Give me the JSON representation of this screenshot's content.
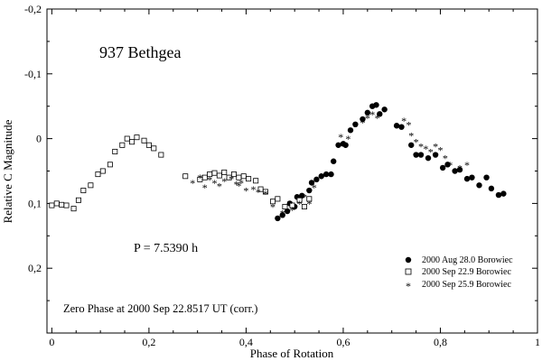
{
  "chart_data": {
    "type": "scatter",
    "xlabel": "Phase of Rotation",
    "ylabel": "Relative C Magnitude",
    "xlim": [
      -0.01,
      1.0
    ],
    "ylim": [
      0.3,
      -0.2
    ],
    "y_inverted": true,
    "grid": false,
    "x_ticks": [
      0,
      0.2,
      0.4,
      0.6,
      0.8,
      1
    ],
    "x_tick_labels": [
      "0",
      "0,2",
      "0,4",
      "0,6",
      "0,8",
      "1"
    ],
    "y_ticks": [
      -0.2,
      -0.1,
      0,
      0.1,
      0.2
    ],
    "y_tick_labels": [
      "-0,2",
      "-0,1",
      "0",
      "0,1",
      "0,2"
    ],
    "annotations": {
      "object": "937 Bethgea",
      "period": "P = 7.5390 h",
      "zero_phase": "Zero Phase at 2000 Sep 22.8517 UT (corr.)"
    },
    "legend_position": "bottom-right",
    "series": [
      {
        "name": "2000 Aug 28.0 Borowiec",
        "marker": "filled-circle",
        "points": [
          [
            0.465,
            0.123
          ],
          [
            0.475,
            0.118
          ],
          [
            0.485,
            0.112
          ],
          [
            0.49,
            0.1
          ],
          [
            0.5,
            0.105
          ],
          [
            0.505,
            0.09
          ],
          [
            0.515,
            0.088
          ],
          [
            0.53,
            0.08
          ],
          [
            0.535,
            0.068
          ],
          [
            0.545,
            0.063
          ],
          [
            0.555,
            0.058
          ],
          [
            0.565,
            0.055
          ],
          [
            0.575,
            0.055
          ],
          [
            0.58,
            0.035
          ],
          [
            0.59,
            0.01
          ],
          [
            0.6,
            0.008
          ],
          [
            0.605,
            0.01
          ],
          [
            0.615,
            -0.013
          ],
          [
            0.625,
            -0.022
          ],
          [
            0.64,
            -0.03
          ],
          [
            0.65,
            -0.04
          ],
          [
            0.66,
            -0.05
          ],
          [
            0.668,
            -0.052
          ],
          [
            0.675,
            -0.038
          ],
          [
            0.685,
            -0.045
          ],
          [
            0.71,
            -0.02
          ],
          [
            0.72,
            -0.018
          ],
          [
            0.74,
            0.01
          ],
          [
            0.75,
            0.025
          ],
          [
            0.76,
            0.025
          ],
          [
            0.775,
            0.03
          ],
          [
            0.79,
            0.025
          ],
          [
            0.805,
            0.045
          ],
          [
            0.815,
            0.04
          ],
          [
            0.83,
            0.05
          ],
          [
            0.84,
            0.048
          ],
          [
            0.855,
            0.062
          ],
          [
            0.865,
            0.06
          ],
          [
            0.88,
            0.072
          ],
          [
            0.895,
            0.06
          ],
          [
            0.905,
            0.077
          ],
          [
            0.92,
            0.087
          ],
          [
            0.93,
            0.085
          ]
        ]
      },
      {
        "name": "2000 Sep 22.9 Borowiec",
        "marker": "open-square",
        "points": [
          [
            0.0,
            0.103
          ],
          [
            0.01,
            0.1
          ],
          [
            0.02,
            0.102
          ],
          [
            0.03,
            0.103
          ],
          [
            0.045,
            0.108
          ],
          [
            0.055,
            0.095
          ],
          [
            0.065,
            0.08
          ],
          [
            0.08,
            0.072
          ],
          [
            0.095,
            0.055
          ],
          [
            0.105,
            0.05
          ],
          [
            0.12,
            0.04
          ],
          [
            0.13,
            0.02
          ],
          [
            0.145,
            0.01
          ],
          [
            0.155,
            0.0
          ],
          [
            0.165,
            0.005
          ],
          [
            0.175,
            -0.002
          ],
          [
            0.19,
            0.003
          ],
          [
            0.2,
            0.01
          ],
          [
            0.21,
            0.015
          ],
          [
            0.225,
            0.025
          ],
          [
            0.275,
            0.058
          ],
          [
            0.305,
            0.063
          ],
          [
            0.315,
            0.06
          ],
          [
            0.325,
            0.055
          ],
          [
            0.335,
            0.053
          ],
          [
            0.345,
            0.057
          ],
          [
            0.355,
            0.052
          ],
          [
            0.365,
            0.06
          ],
          [
            0.375,
            0.055
          ],
          [
            0.385,
            0.06
          ],
          [
            0.395,
            0.058
          ],
          [
            0.405,
            0.062
          ],
          [
            0.42,
            0.065
          ],
          [
            0.43,
            0.078
          ],
          [
            0.44,
            0.082
          ],
          [
            0.455,
            0.097
          ],
          [
            0.465,
            0.093
          ],
          [
            0.48,
            0.105
          ],
          [
            0.495,
            0.103
          ],
          [
            0.51,
            0.095
          ],
          [
            0.52,
            0.105
          ],
          [
            0.53,
            0.093
          ]
        ]
      },
      {
        "name": "2000 Sep 25.9 Borowiec",
        "marker": "asterisk",
        "points": [
          [
            0.29,
            0.068
          ],
          [
            0.305,
            0.06
          ],
          [
            0.315,
            0.075
          ],
          [
            0.325,
            0.063
          ],
          [
            0.335,
            0.068
          ],
          [
            0.345,
            0.073
          ],
          [
            0.355,
            0.065
          ],
          [
            0.37,
            0.062
          ],
          [
            0.38,
            0.07
          ],
          [
            0.385,
            0.072
          ],
          [
            0.39,
            0.068
          ],
          [
            0.4,
            0.08
          ],
          [
            0.415,
            0.078
          ],
          [
            0.425,
            0.082
          ],
          [
            0.44,
            0.085
          ],
          [
            0.455,
            0.105
          ],
          [
            0.475,
            0.115
          ],
          [
            0.49,
            0.1
          ],
          [
            0.495,
            0.11
          ],
          [
            0.51,
            0.1
          ],
          [
            0.52,
            0.09
          ],
          [
            0.53,
            0.1
          ],
          [
            0.54,
            0.075
          ],
          [
            0.595,
            -0.003
          ],
          [
            0.61,
            0.0
          ],
          [
            0.625,
            -0.022
          ],
          [
            0.64,
            -0.025
          ],
          [
            0.65,
            -0.032
          ],
          [
            0.66,
            -0.038
          ],
          [
            0.67,
            -0.032
          ],
          [
            0.725,
            -0.028
          ],
          [
            0.735,
            -0.022
          ],
          [
            0.74,
            -0.005
          ],
          [
            0.75,
            0.005
          ],
          [
            0.76,
            0.012
          ],
          [
            0.77,
            0.015
          ],
          [
            0.78,
            0.02
          ],
          [
            0.79,
            0.012
          ],
          [
            0.8,
            0.017
          ],
          [
            0.81,
            0.03
          ],
          [
            0.82,
            0.04
          ],
          [
            0.84,
            0.045
          ],
          [
            0.855,
            0.04
          ]
        ]
      }
    ]
  }
}
